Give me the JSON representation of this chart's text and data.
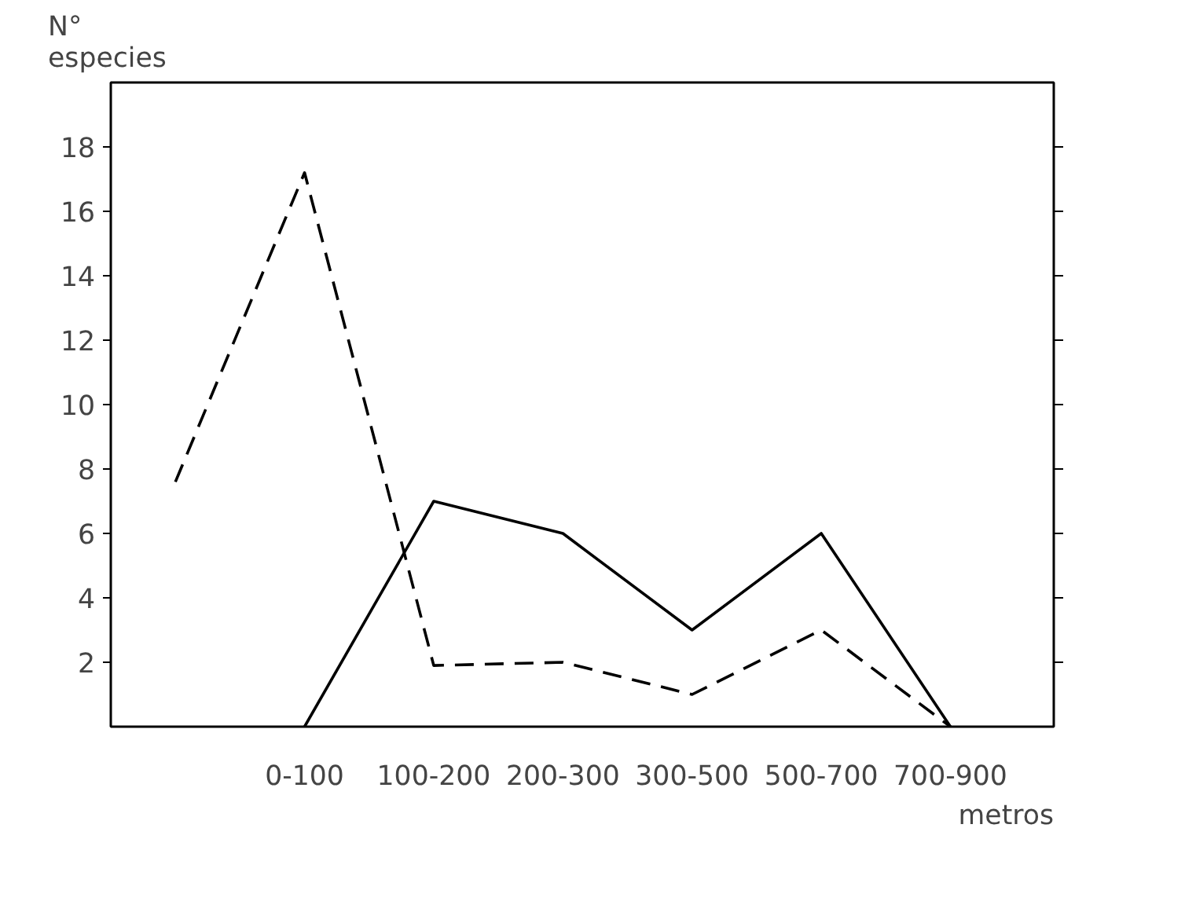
{
  "chart_data": {
    "type": "line",
    "ylabel": "N°\nespecies",
    "xlabel": "metros",
    "categories": [
      null,
      "0-100",
      "100-200",
      "200-300",
      "300-500",
      "500-700",
      "700-900"
    ],
    "ylim": [
      0,
      20
    ],
    "yticks": [
      2,
      4,
      6,
      8,
      10,
      12,
      14,
      16,
      18
    ],
    "series": [
      {
        "color": "#000000",
        "line_style": "solid",
        "values": [
          null,
          0,
          7,
          6,
          3,
          6,
          0
        ]
      },
      {
        "color": "#000000",
        "line_style": "dashed",
        "values": [
          7.6,
          17.2,
          1.9,
          2,
          1,
          3,
          0
        ]
      }
    ],
    "grid": false,
    "marker": "none"
  }
}
